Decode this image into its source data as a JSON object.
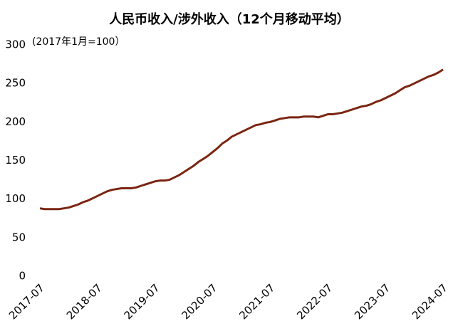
{
  "chart_data": {
    "type": "line",
    "title": "人民币收入/涉外收入（12个月移动平均）",
    "subtitle": "(2017年1月=100）",
    "x": [
      "2017-07",
      "2017-08",
      "2017-09",
      "2017-10",
      "2017-11",
      "2017-12",
      "2018-01",
      "2018-02",
      "2018-03",
      "2018-04",
      "2018-05",
      "2018-06",
      "2018-07",
      "2018-08",
      "2018-09",
      "2018-10",
      "2018-11",
      "2018-12",
      "2019-01",
      "2019-02",
      "2019-03",
      "2019-04",
      "2019-05",
      "2019-06",
      "2019-07",
      "2019-08",
      "2019-09",
      "2019-10",
      "2019-11",
      "2019-12",
      "2020-01",
      "2020-02",
      "2020-03",
      "2020-04",
      "2020-05",
      "2020-06",
      "2020-07",
      "2020-08",
      "2020-09",
      "2020-10",
      "2020-11",
      "2020-12",
      "2021-01",
      "2021-02",
      "2021-03",
      "2021-04",
      "2021-05",
      "2021-06",
      "2021-07",
      "2021-08",
      "2021-09",
      "2021-10",
      "2021-11",
      "2021-12",
      "2022-01",
      "2022-02",
      "2022-03",
      "2022-04",
      "2022-05",
      "2022-06",
      "2022-07",
      "2022-08",
      "2022-09",
      "2022-10",
      "2022-11",
      "2022-12",
      "2023-01",
      "2023-02",
      "2023-03",
      "2023-04",
      "2023-05",
      "2023-06",
      "2023-07",
      "2023-08",
      "2023-09",
      "2023-10",
      "2023-11",
      "2023-12",
      "2024-01",
      "2024-02",
      "2024-03",
      "2024-04",
      "2024-05",
      "2024-06",
      "2024-07"
    ],
    "values": [
      88,
      87,
      87,
      87,
      87,
      88,
      89,
      91,
      93,
      96,
      98,
      101,
      104,
      107,
      110,
      112,
      113,
      114,
      114,
      114,
      115,
      117,
      119,
      121,
      123,
      124,
      124,
      125,
      128,
      131,
      135,
      139,
      143,
      148,
      152,
      156,
      161,
      166,
      172,
      176,
      181,
      184,
      187,
      190,
      193,
      196,
      197,
      199,
      200,
      202,
      204,
      205,
      206,
      206,
      206,
      207,
      207,
      207,
      206,
      208,
      210,
      210,
      211,
      212,
      214,
      216,
      218,
      220,
      221,
      223,
      226,
      228,
      231,
      234,
      237,
      241,
      245,
      247,
      250,
      253,
      256,
      259,
      261,
      264,
      268
    ],
    "color": "#7a2512",
    "xticks": [
      "2017-07",
      "2018-07",
      "2019-07",
      "2020-07",
      "2021-07",
      "2022-07",
      "2023-07",
      "2024-07"
    ],
    "ylim": [
      0,
      300
    ],
    "yticks": [
      0,
      50,
      100,
      150,
      200,
      250,
      300
    ]
  }
}
